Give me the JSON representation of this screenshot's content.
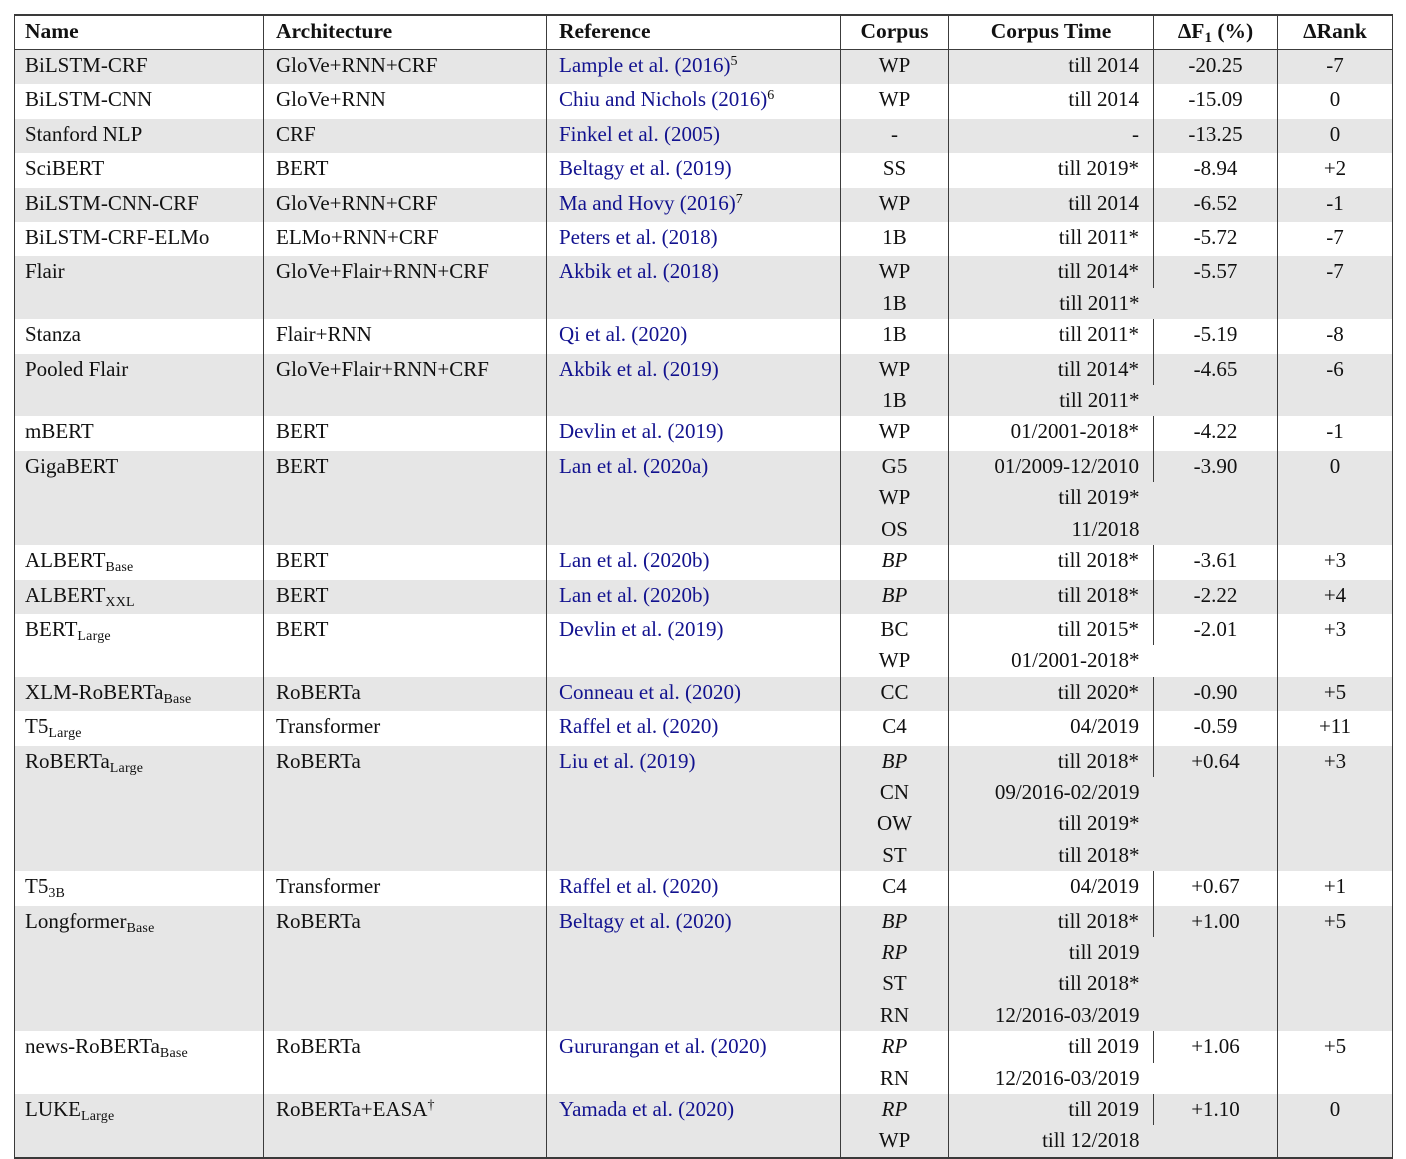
{
  "colors": {
    "link": "#12128f",
    "stripe": "#e6e6e6",
    "line": "#3c3c3c"
  },
  "table": {
    "header": {
      "name": "Name",
      "architecture": "Architecture",
      "reference": "Reference",
      "corpus": "Corpus",
      "corpus_time": "Corpus Time",
      "delta_f1_main": "ΔF",
      "delta_f1_sub": "1",
      "delta_f1_rest": " (%)",
      "delta_rank": "ΔRank"
    },
    "rows": [
      {
        "name": "BiLSTM-CRF",
        "name_sub": "",
        "architecture": "GloVe+RNN+CRF",
        "arch_sup": "",
        "reference": "Lample et al. (2016)",
        "ref_sup": "5",
        "corpus": [
          {
            "code": "WP",
            "italic": false,
            "time": "till 2014"
          }
        ],
        "delta_f1": "-20.25",
        "delta_rank": "-7",
        "shaded": true
      },
      {
        "name": "BiLSTM-CNN",
        "name_sub": "",
        "architecture": "GloVe+RNN",
        "arch_sup": "",
        "reference": "Chiu and Nichols (2016)",
        "ref_sup": "6",
        "corpus": [
          {
            "code": "WP",
            "italic": false,
            "time": "till 2014"
          }
        ],
        "delta_f1": "-15.09",
        "delta_rank": "0",
        "shaded": false
      },
      {
        "name": "Stanford NLP",
        "name_sub": "",
        "architecture": "CRF",
        "arch_sup": "",
        "reference": "Finkel et al. (2005)",
        "ref_sup": "",
        "corpus": [
          {
            "code": "-",
            "italic": false,
            "time": "-"
          }
        ],
        "delta_f1": "-13.25",
        "delta_rank": "0",
        "shaded": true
      },
      {
        "name": "SciBERT",
        "name_sub": "",
        "architecture": "BERT",
        "arch_sup": "",
        "reference": "Beltagy et al. (2019)",
        "ref_sup": "",
        "corpus": [
          {
            "code": "SS",
            "italic": false,
            "time": "till 2019*"
          }
        ],
        "delta_f1": "-8.94",
        "delta_rank": "+2",
        "shaded": false
      },
      {
        "name": "BiLSTM-CNN-CRF",
        "name_sub": "",
        "architecture": "GloVe+RNN+CRF",
        "arch_sup": "",
        "reference": "Ma and Hovy (2016)",
        "ref_sup": "7",
        "corpus": [
          {
            "code": "WP",
            "italic": false,
            "time": "till 2014"
          }
        ],
        "delta_f1": "-6.52",
        "delta_rank": "-1",
        "shaded": true
      },
      {
        "name": "BiLSTM-CRF-ELMo",
        "name_sub": "",
        "architecture": "ELMo+RNN+CRF",
        "arch_sup": "",
        "reference": "Peters et al. (2018)",
        "ref_sup": "",
        "corpus": [
          {
            "code": "1B",
            "italic": false,
            "time": "till 2011*"
          }
        ],
        "delta_f1": "-5.72",
        "delta_rank": "-7",
        "shaded": false
      },
      {
        "name": "Flair",
        "name_sub": "",
        "architecture": "GloVe+Flair+RNN+CRF",
        "arch_sup": "",
        "reference": "Akbik et al. (2018)",
        "ref_sup": "",
        "corpus": [
          {
            "code": "WP",
            "italic": false,
            "time": "till 2014*"
          },
          {
            "code": "1B",
            "italic": false,
            "time": "till 2011*"
          }
        ],
        "delta_f1": "-5.57",
        "delta_rank": "-7",
        "shaded": true
      },
      {
        "name": "Stanza",
        "name_sub": "",
        "architecture": "Flair+RNN",
        "arch_sup": "",
        "reference": "Qi et al. (2020)",
        "ref_sup": "",
        "corpus": [
          {
            "code": "1B",
            "italic": false,
            "time": "till 2011*"
          }
        ],
        "delta_f1": "-5.19",
        "delta_rank": "-8",
        "shaded": false
      },
      {
        "name": "Pooled Flair",
        "name_sub": "",
        "architecture": "GloVe+Flair+RNN+CRF",
        "arch_sup": "",
        "reference": "Akbik et al. (2019)",
        "ref_sup": "",
        "corpus": [
          {
            "code": "WP",
            "italic": false,
            "time": "till 2014*"
          },
          {
            "code": "1B",
            "italic": false,
            "time": "till 2011*"
          }
        ],
        "delta_f1": "-4.65",
        "delta_rank": "-6",
        "shaded": true
      },
      {
        "name": "mBERT",
        "name_sub": "",
        "architecture": "BERT",
        "arch_sup": "",
        "reference": "Devlin et al. (2019)",
        "ref_sup": "",
        "corpus": [
          {
            "code": "WP",
            "italic": false,
            "time": "01/2001-2018*"
          }
        ],
        "delta_f1": "-4.22",
        "delta_rank": "-1",
        "shaded": false
      },
      {
        "name": "GigaBERT",
        "name_sub": "",
        "architecture": "BERT",
        "arch_sup": "",
        "reference": "Lan et al. (2020a)",
        "ref_sup": "",
        "corpus": [
          {
            "code": "G5",
            "italic": false,
            "time": "01/2009-12/2010"
          },
          {
            "code": "WP",
            "italic": false,
            "time": "till 2019*"
          },
          {
            "code": "OS",
            "italic": false,
            "time": "11/2018"
          }
        ],
        "delta_f1": "-3.90",
        "delta_rank": "0",
        "shaded": true
      },
      {
        "name": "ALBERT",
        "name_sub": "Base",
        "architecture": "BERT",
        "arch_sup": "",
        "reference": "Lan et al. (2020b)",
        "ref_sup": "",
        "corpus": [
          {
            "code": "BP",
            "italic": true,
            "time": "till 2018*"
          }
        ],
        "delta_f1": "-3.61",
        "delta_rank": "+3",
        "shaded": false
      },
      {
        "name": "ALBERT",
        "name_sub": "XXL",
        "architecture": "BERT",
        "arch_sup": "",
        "reference": "Lan et al. (2020b)",
        "ref_sup": "",
        "corpus": [
          {
            "code": "BP",
            "italic": true,
            "time": "till 2018*"
          }
        ],
        "delta_f1": "-2.22",
        "delta_rank": "+4",
        "shaded": true
      },
      {
        "name": "BERT",
        "name_sub": "Large",
        "architecture": "BERT",
        "arch_sup": "",
        "reference": "Devlin et al. (2019)",
        "ref_sup": "",
        "corpus": [
          {
            "code": "BC",
            "italic": false,
            "time": "till 2015*"
          },
          {
            "code": "WP",
            "italic": false,
            "time": "01/2001-2018*"
          }
        ],
        "delta_f1": "-2.01",
        "delta_rank": "+3",
        "shaded": false
      },
      {
        "name": "XLM-RoBERTa",
        "name_sub": "Base",
        "architecture": "RoBERTa",
        "arch_sup": "",
        "reference": "Conneau et al. (2020)",
        "ref_sup": "",
        "corpus": [
          {
            "code": "CC",
            "italic": false,
            "time": "till 2020*"
          }
        ],
        "delta_f1": "-0.90",
        "delta_rank": "+5",
        "shaded": true
      },
      {
        "name": "T5",
        "name_sub": "Large",
        "architecture": "Transformer",
        "arch_sup": "",
        "reference": "Raffel et al. (2020)",
        "ref_sup": "",
        "corpus": [
          {
            "code": "C4",
            "italic": false,
            "time": "04/2019"
          }
        ],
        "delta_f1": "-0.59",
        "delta_rank": "+11",
        "shaded": false
      },
      {
        "name": "RoBERTa",
        "name_sub": "Large",
        "architecture": "RoBERTa",
        "arch_sup": "",
        "reference": "Liu et al. (2019)",
        "ref_sup": "",
        "corpus": [
          {
            "code": "BP",
            "italic": true,
            "time": "till 2018*"
          },
          {
            "code": "CN",
            "italic": false,
            "time": "09/2016-02/2019"
          },
          {
            "code": "OW",
            "italic": false,
            "time": "till 2019*"
          },
          {
            "code": "ST",
            "italic": false,
            "time": "till 2018*"
          }
        ],
        "delta_f1": "+0.64",
        "delta_rank": "+3",
        "shaded": true
      },
      {
        "name": "T5",
        "name_sub": "3B",
        "architecture": "Transformer",
        "arch_sup": "",
        "reference": "Raffel et al. (2020)",
        "ref_sup": "",
        "corpus": [
          {
            "code": "C4",
            "italic": false,
            "time": "04/2019"
          }
        ],
        "delta_f1": "+0.67",
        "delta_rank": "+1",
        "shaded": false
      },
      {
        "name": "Longformer",
        "name_sub": "Base",
        "architecture": "RoBERTa",
        "arch_sup": "",
        "reference": "Beltagy et al. (2020)",
        "ref_sup": "",
        "corpus": [
          {
            "code": "BP",
            "italic": true,
            "time": "till 2018*"
          },
          {
            "code": "RP",
            "italic": true,
            "time": "till 2019"
          },
          {
            "code": "ST",
            "italic": false,
            "time": "till 2018*"
          },
          {
            "code": "RN",
            "italic": false,
            "time": "12/2016-03/2019"
          }
        ],
        "delta_f1": "+1.00",
        "delta_rank": "+5",
        "shaded": true
      },
      {
        "name": "news-RoBERTa",
        "name_sub": "Base",
        "architecture": "RoBERTa",
        "arch_sup": "",
        "reference": "Gururangan et al. (2020)",
        "ref_sup": "",
        "corpus": [
          {
            "code": "RP",
            "italic": true,
            "time": "till 2019"
          },
          {
            "code": "RN",
            "italic": false,
            "time": "12/2016-03/2019"
          }
        ],
        "delta_f1": "+1.06",
        "delta_rank": "+5",
        "shaded": false
      },
      {
        "name": "LUKE",
        "name_sub": "Large",
        "architecture": "RoBERTa+EASA",
        "arch_sup": "†",
        "reference": "Yamada et al. (2020)",
        "ref_sup": "",
        "corpus": [
          {
            "code": "RP",
            "italic": true,
            "time": "till 2019"
          },
          {
            "code": "WP",
            "italic": false,
            "time": "till 12/2018"
          }
        ],
        "delta_f1": "+1.10",
        "delta_rank": "0",
        "shaded": true
      }
    ]
  }
}
